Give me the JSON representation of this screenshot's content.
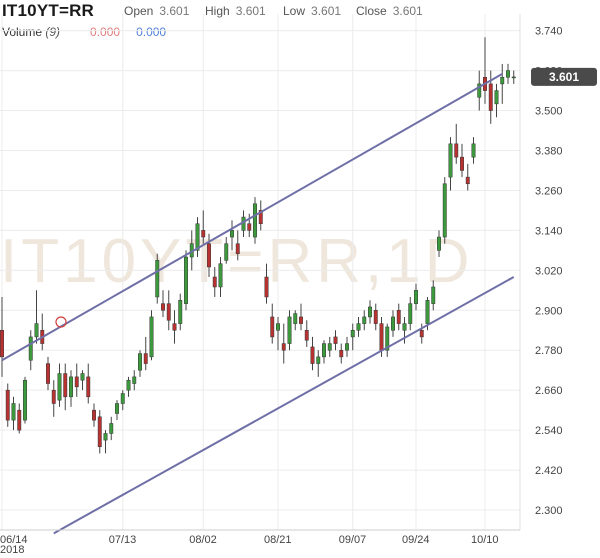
{
  "header": {
    "symbol": "IT10YT=RR",
    "open_label": "Open",
    "open_value": "3.601",
    "high_label": "High",
    "high_value": "3.601",
    "low_label": "Low",
    "low_value": "3.601",
    "close_label": "Close",
    "close_value": "3.601",
    "volume_label": "Volume",
    "volume_period": "(9)",
    "volume_value_1": "0.000",
    "volume_value_2": "0.000"
  },
  "watermark": "IT10YT=RR,1D",
  "colors": {
    "up": "#3c9a3c",
    "down": "#b83232",
    "channel": "#6f6fa8",
    "badge": "#4a4a4a"
  },
  "chart_data": {
    "type": "candlestick",
    "y_ticks": [
      "3.740",
      "3.620",
      "3.500",
      "3.380",
      "3.260",
      "3.140",
      "3.020",
      "2.900",
      "2.780",
      "2.660",
      "2.540",
      "2.420",
      "2.300"
    ],
    "ylim": [
      2.24,
      3.79
    ],
    "x_ticks": [
      {
        "label": "06/14",
        "index": 0
      },
      {
        "label": "07/13",
        "index": 21
      },
      {
        "label": "08/02",
        "index": 35
      },
      {
        "label": "08/21",
        "index": 48
      },
      {
        "label": "09/07",
        "index": 61
      },
      {
        "label": "09/24",
        "index": 72
      },
      {
        "label": "10/10",
        "index": 84
      }
    ],
    "x_sub_label": "2018",
    "last_price": "3.601",
    "channel_upper": [
      {
        "index": 0,
        "value": 2.75
      },
      {
        "index": 87,
        "value": 3.61
      }
    ],
    "channel_lower": [
      {
        "index": 9,
        "value": 2.23
      },
      {
        "index": 89,
        "value": 3.0
      }
    ],
    "candles": [
      [
        2.84,
        2.94,
        2.7,
        2.76
      ],
      [
        2.66,
        2.68,
        2.55,
        2.57
      ],
      [
        2.57,
        2.64,
        2.54,
        2.62
      ],
      [
        2.6,
        2.62,
        2.53,
        2.54
      ],
      [
        2.57,
        2.7,
        2.56,
        2.69
      ],
      [
        2.75,
        2.84,
        2.72,
        2.82
      ],
      [
        2.82,
        2.96,
        2.8,
        2.86
      ],
      [
        2.84,
        2.89,
        2.78,
        2.8
      ],
      [
        2.74,
        2.76,
        2.66,
        2.68
      ],
      [
        2.66,
        2.69,
        2.58,
        2.62
      ],
      [
        2.63,
        2.74,
        2.61,
        2.71
      ],
      [
        2.71,
        2.74,
        2.6,
        2.64
      ],
      [
        2.64,
        2.72,
        2.61,
        2.7
      ],
      [
        2.7,
        2.74,
        2.64,
        2.67
      ],
      [
        2.69,
        2.72,
        2.66,
        2.71
      ],
      [
        2.7,
        2.74,
        2.62,
        2.64
      ],
      [
        2.6,
        2.62,
        2.55,
        2.57
      ],
      [
        2.58,
        2.6,
        2.47,
        2.49
      ],
      [
        2.51,
        2.54,
        2.47,
        2.53
      ],
      [
        2.53,
        2.58,
        2.51,
        2.56
      ],
      [
        2.59,
        2.63,
        2.57,
        2.62
      ],
      [
        2.62,
        2.66,
        2.6,
        2.65
      ],
      [
        2.66,
        2.7,
        2.64,
        2.69
      ],
      [
        2.68,
        2.72,
        2.66,
        2.7
      ],
      [
        2.72,
        2.78,
        2.7,
        2.77
      ],
      [
        2.77,
        2.82,
        2.72,
        2.74
      ],
      [
        2.76,
        2.9,
        2.75,
        2.88
      ],
      [
        2.94,
        3.07,
        2.92,
        3.05
      ],
      [
        2.92,
        2.96,
        2.88,
        2.9
      ],
      [
        2.92,
        2.96,
        2.84,
        2.87
      ],
      [
        2.86,
        2.9,
        2.8,
        2.84
      ],
      [
        2.86,
        2.95,
        2.84,
        2.93
      ],
      [
        2.92,
        3.08,
        2.9,
        3.06
      ],
      [
        3.06,
        3.14,
        3.02,
        3.1
      ],
      [
        3.08,
        3.18,
        3.06,
        3.16
      ],
      [
        3.14,
        3.2,
        3.1,
        3.12
      ],
      [
        3.1,
        3.13,
        3.0,
        3.03
      ],
      [
        3.0,
        3.03,
        2.94,
        2.97
      ],
      [
        2.97,
        3.06,
        2.94,
        3.04
      ],
      [
        3.05,
        3.12,
        3.04,
        3.1
      ],
      [
        3.12,
        3.17,
        3.08,
        3.14
      ],
      [
        3.1,
        3.14,
        3.05,
        3.07
      ],
      [
        3.14,
        3.2,
        3.12,
        3.18
      ],
      [
        3.16,
        3.19,
        3.12,
        3.14
      ],
      [
        3.12,
        3.24,
        3.1,
        3.22
      ],
      [
        3.2,
        3.23,
        3.14,
        3.16
      ],
      [
        3.0,
        3.04,
        2.92,
        2.94
      ],
      [
        2.88,
        2.92,
        2.8,
        2.82
      ],
      [
        2.84,
        2.88,
        2.78,
        2.86
      ],
      [
        2.8,
        2.86,
        2.74,
        2.78
      ],
      [
        2.8,
        2.9,
        2.78,
        2.88
      ],
      [
        2.86,
        2.9,
        2.84,
        2.89
      ],
      [
        2.88,
        2.92,
        2.84,
        2.86
      ],
      [
        2.84,
        2.87,
        2.79,
        2.81
      ],
      [
        2.79,
        2.82,
        2.72,
        2.74
      ],
      [
        2.74,
        2.78,
        2.7,
        2.76
      ],
      [
        2.76,
        2.81,
        2.74,
        2.8
      ],
      [
        2.78,
        2.82,
        2.76,
        2.8
      ],
      [
        2.82,
        2.84,
        2.78,
        2.8
      ],
      [
        2.78,
        2.8,
        2.74,
        2.76
      ],
      [
        2.78,
        2.82,
        2.76,
        2.8
      ],
      [
        2.82,
        2.86,
        2.78,
        2.84
      ],
      [
        2.84,
        2.88,
        2.82,
        2.86
      ],
      [
        2.86,
        2.9,
        2.84,
        2.88
      ],
      [
        2.88,
        2.93,
        2.86,
        2.91
      ],
      [
        2.9,
        2.92,
        2.84,
        2.86
      ],
      [
        2.86,
        2.88,
        2.76,
        2.78
      ],
      [
        2.78,
        2.86,
        2.76,
        2.85
      ],
      [
        2.84,
        2.9,
        2.82,
        2.88
      ],
      [
        2.9,
        2.92,
        2.84,
        2.86
      ],
      [
        2.84,
        2.88,
        2.8,
        2.86
      ],
      [
        2.86,
        2.94,
        2.84,
        2.92
      ],
      [
        2.92,
        2.98,
        2.9,
        2.96
      ],
      [
        2.84,
        2.86,
        2.8,
        2.82
      ],
      [
        2.86,
        2.94,
        2.84,
        2.93
      ],
      [
        2.92,
        2.99,
        2.9,
        2.97
      ],
      [
        3.08,
        3.14,
        3.06,
        3.12
      ],
      [
        3.12,
        3.3,
        3.1,
        3.28
      ],
      [
        3.3,
        3.42,
        3.26,
        3.4
      ],
      [
        3.4,
        3.46,
        3.34,
        3.36
      ],
      [
        3.36,
        3.4,
        3.3,
        3.32
      ],
      [
        3.3,
        3.34,
        3.26,
        3.28
      ],
      [
        3.36,
        3.42,
        3.34,
        3.4
      ],
      [
        3.54,
        3.62,
        3.5,
        3.58
      ],
      [
        3.6,
        3.72,
        3.52,
        3.56
      ],
      [
        3.58,
        3.62,
        3.46,
        3.5
      ],
      [
        3.52,
        3.58,
        3.48,
        3.56
      ],
      [
        3.58,
        3.64,
        3.52,
        3.6
      ],
      [
        3.6,
        3.64,
        3.58,
        3.62
      ],
      [
        3.6,
        3.62,
        3.58,
        3.601
      ]
    ]
  }
}
